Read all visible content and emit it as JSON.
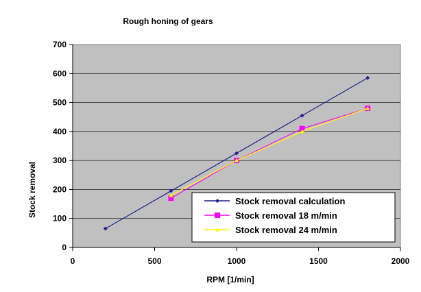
{
  "chart_data": {
    "type": "line",
    "title": "Rough honing of gears",
    "xlabel": "RPM  [1/min]",
    "ylabel": "Stock removal",
    "xlim": [
      0,
      2000
    ],
    "ylim": [
      0,
      700
    ],
    "x_ticks": [
      "0",
      "500",
      "1000",
      "1500",
      "2000"
    ],
    "y_ticks": [
      "0",
      "100",
      "200",
      "300",
      "400",
      "500",
      "600",
      "700"
    ],
    "grid": true,
    "plot_background": "#c0c0c0",
    "legend_position": "bottom-right",
    "series": [
      {
        "name": "Stock removal calculation",
        "color": "#1f1f8f",
        "marker": "diamond",
        "x": [
          200,
          600,
          1000,
          1400,
          1800
        ],
        "y": [
          65,
          195,
          325,
          455,
          585
        ]
      },
      {
        "name": "Stock removal 18 m/min",
        "color": "#ff00ff",
        "marker": "square",
        "x": [
          600,
          1000,
          1400,
          1800
        ],
        "y": [
          170,
          300,
          410,
          480
        ]
      },
      {
        "name": "Stock removal 24 m/min",
        "color": "#ffff00",
        "marker": "triangle",
        "x": [
          600,
          1000,
          1400,
          1800
        ],
        "y": [
          180,
          300,
          400,
          480
        ]
      }
    ]
  }
}
